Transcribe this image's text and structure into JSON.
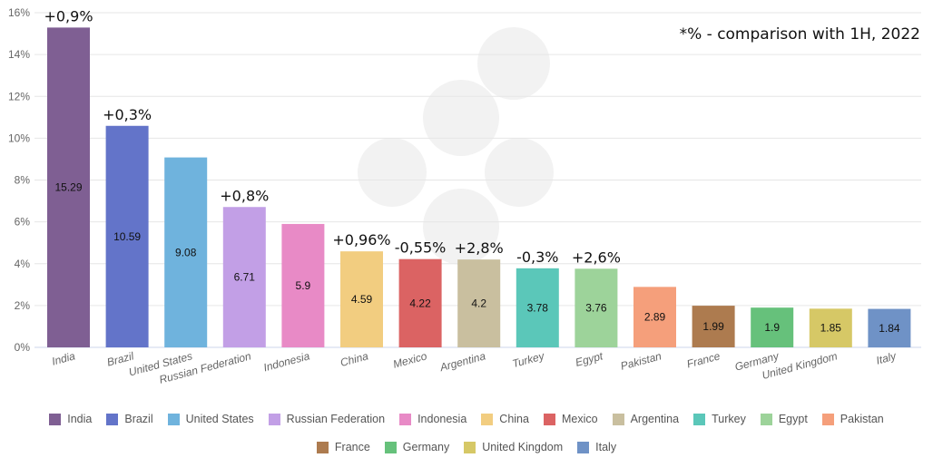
{
  "chart_data": {
    "type": "bar",
    "title": "",
    "note": "*% - comparison with 1H, 2022",
    "xlabel": "",
    "ylabel": "",
    "ylim": [
      0,
      16
    ],
    "yticks": [
      "0%",
      "2%",
      "4%",
      "6%",
      "8%",
      "10%",
      "12%",
      "14%",
      "16%"
    ],
    "grid": true,
    "legend_position": "bottom",
    "categories": [
      "India",
      "Brazil",
      "United States",
      "Russian Federation",
      "Indonesia",
      "China",
      "Mexico",
      "Argentina",
      "Turkey",
      "Egypt",
      "Pakistan",
      "France",
      "Germany",
      "United Kingdom",
      "Italy"
    ],
    "values": [
      15.29,
      10.59,
      9.08,
      6.71,
      5.9,
      4.59,
      4.22,
      4.2,
      3.78,
      3.76,
      2.89,
      1.99,
      1.9,
      1.85,
      1.84
    ],
    "data_labels": [
      "15.29",
      "10.59",
      "9.08",
      "6.71",
      "5.9",
      "4.59",
      "4.22",
      "4.2",
      "3.78",
      "3.76",
      "2.89",
      "1.99",
      "1.9",
      "1.85",
      "1.84"
    ],
    "annotations": [
      "+0,9%",
      "+0,3%",
      "",
      "+0,8%",
      "",
      "+0,96%",
      "-0,55%",
      "+2,8%",
      "-0,3%",
      "+2,6%",
      "",
      "",
      "",
      "",
      ""
    ],
    "colors": [
      "#7f5f93",
      "#6374c9",
      "#6fb3dd",
      "#c29fe6",
      "#e88ac6",
      "#f2cd80",
      "#db6363",
      "#c9bf9f",
      "#5bc7b9",
      "#9dd39a",
      "#f59f7b",
      "#ad7b4f",
      "#66c17b",
      "#d6c866",
      "#6f92c6"
    ]
  }
}
